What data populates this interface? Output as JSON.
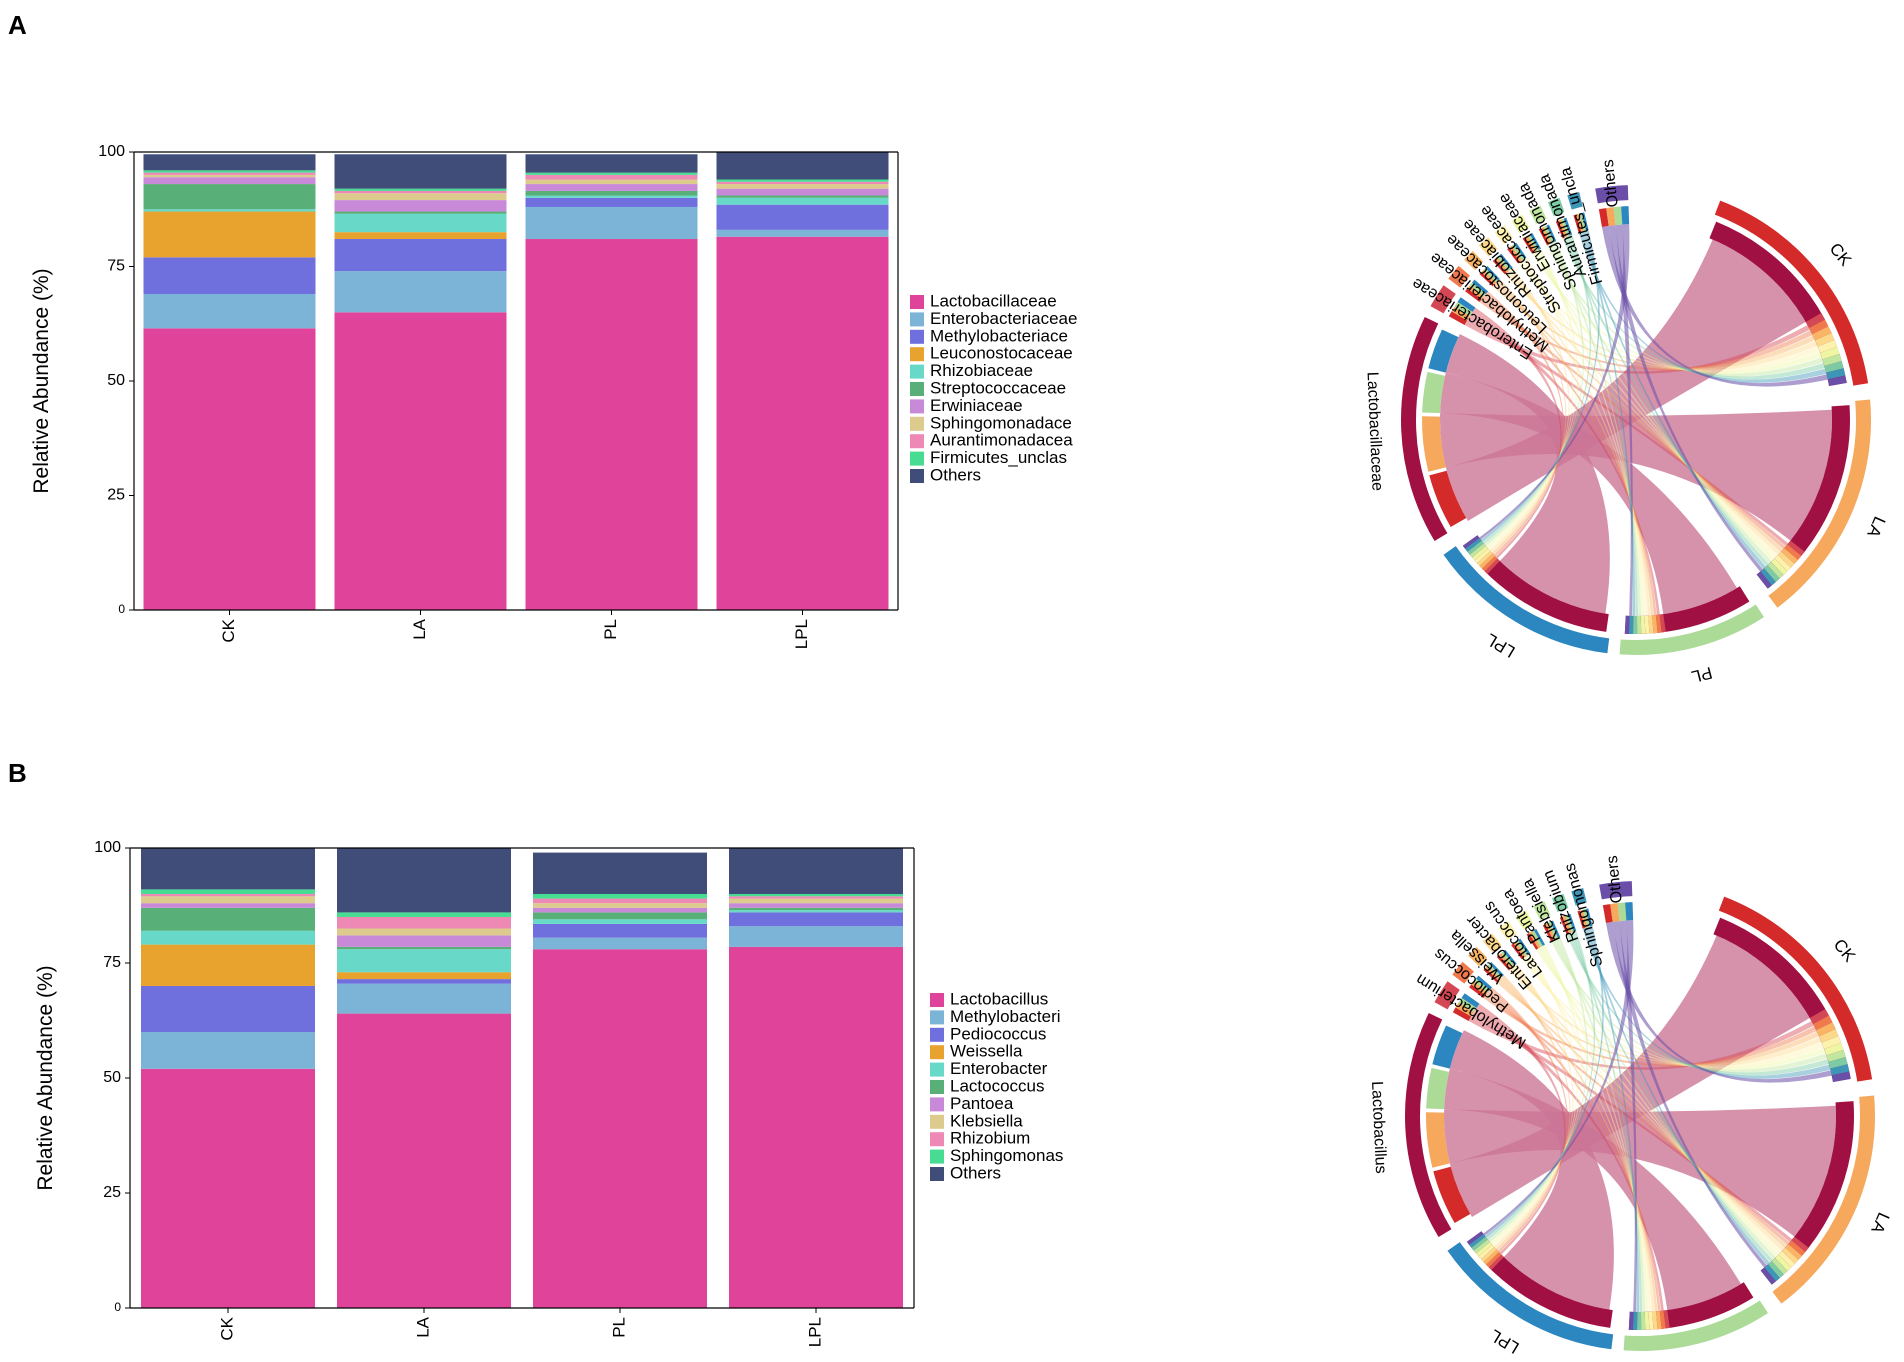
{
  "panels": [
    {
      "label": "A"
    },
    {
      "label": "B"
    }
  ],
  "chart_data": [
    {
      "type": "bar",
      "stacked": true,
      "panel": "A",
      "title": "",
      "xlabel": "",
      "ylabel": "Relative Abundance (%)",
      "ylim": [
        0,
        100
      ],
      "yticks": [
        "0",
        "25",
        "50",
        "75",
        "100"
      ],
      "categories": [
        "CK",
        "LA",
        "PL",
        "LPL"
      ],
      "series": [
        {
          "name": "Lactobacillaceae",
          "color": "#e0449a",
          "values": [
            61.5,
            65,
            81,
            81.5
          ]
        },
        {
          "name": "Enterobacteriaceae",
          "color": "#7cb4d8",
          "values": [
            7.5,
            9,
            7,
            1.5
          ]
        },
        {
          "name": "Methylobacteriaceae",
          "color": "#6f6fdd",
          "values": [
            8,
            7,
            2,
            5.5
          ]
        },
        {
          "name": "Leuconostocaceae",
          "color": "#e8a22e",
          "values": [
            10,
            1.5,
            0,
            0
          ]
        },
        {
          "name": "Rhizobiaceae",
          "color": "#68d9c8",
          "values": [
            0.5,
            4,
            0.5,
            1.5
          ]
        },
        {
          "name": "Streptococcaceae",
          "color": "#58b078",
          "values": [
            5.5,
            0.5,
            1,
            0.5
          ]
        },
        {
          "name": "Erwiniaceae",
          "color": "#c88ad8",
          "values": [
            1.5,
            2.5,
            1.5,
            1.5
          ]
        },
        {
          "name": "Sphingomonadaceae",
          "color": "#dccb8c",
          "values": [
            0.5,
            1.5,
            1,
            1
          ]
        },
        {
          "name": "Aurantimonadaceae",
          "color": "#ee88b4",
          "values": [
            0.5,
            0.5,
            1,
            0.5
          ]
        },
        {
          "name": "Firmicutes_unclassified",
          "color": "#48dc92",
          "values": [
            0.5,
            0.5,
            0.5,
            0.5
          ]
        },
        {
          "name": "Others",
          "color": "#3f4d78",
          "values": [
            3.5,
            7.5,
            4,
            6
          ]
        }
      ],
      "legend_labels": [
        "Lactobacillaceae",
        "Enterobacteriaceae",
        "Methylobacteriace",
        "Leuconostocaceae",
        "Rhizobiaceae",
        "Streptococcaceae",
        "Erwiniaceae",
        "Sphingomonadace",
        "Aurantimonadacea",
        "Firmicutes_unclas",
        "Others"
      ]
    },
    {
      "type": "chord",
      "panel": "A",
      "sample_labels": [
        "CK",
        "LA",
        "PL",
        "LPL"
      ],
      "sample_colors": [
        "#d42a2a",
        "#f6a85c",
        "#acdb98",
        "#2c86c0"
      ],
      "taxon_labels": [
        "Lactobacillaceae",
        "Enterobacteriaceae",
        "Methylobacteriaceae",
        "Leuconostocaceae",
        "Rhizobiaceae",
        "Streptococcaceae",
        "Erwiniaceae",
        "Sphingomonadaceae",
        "Aurantimonadaceae",
        "Firmicutes_unclassified",
        "Others"
      ],
      "taxon_label_text": [
        "Lactobacillaceae",
        "Enterobacteriaceae",
        "Methylobacteriaceae",
        "Leuconostocaceae",
        "Rhizobiaceae",
        "Streptococcaceae",
        "Erwiniaceae",
        "Sphingomonada",
        "Aurantimonada",
        "Firmicutes_uncla",
        "Others"
      ],
      "taxon_colors": [
        "#a01043",
        "#d44855",
        "#f07a4c",
        "#f9b466",
        "#fcd98a",
        "#fdf2ad",
        "#eef6a4",
        "#c0e6a0",
        "#7ccba4",
        "#3d96b8",
        "#6a4ea8"
      ]
    },
    {
      "type": "bar",
      "stacked": true,
      "panel": "B",
      "title": "",
      "xlabel": "",
      "ylabel": "Relative Abundance (%)",
      "ylim": [
        0,
        100
      ],
      "yticks": [
        "0",
        "25",
        "50",
        "75",
        "100"
      ],
      "categories": [
        "CK",
        "LA",
        "PL",
        "LPL"
      ],
      "series": [
        {
          "name": "Lactobacillus",
          "color": "#e0449a",
          "values": [
            52,
            64,
            78,
            78.5
          ]
        },
        {
          "name": "Methylobacterium",
          "color": "#7cb4d8",
          "values": [
            8,
            6.5,
            2.5,
            4.5
          ]
        },
        {
          "name": "Pediococcus",
          "color": "#6f6fdd",
          "values": [
            10,
            1,
            3,
            3
          ]
        },
        {
          "name": "Weissella",
          "color": "#e8a22e",
          "values": [
            9,
            1.5,
            0,
            0
          ]
        },
        {
          "name": "Enterobacter",
          "color": "#68d9c8",
          "values": [
            3,
            5,
            1,
            0.5
          ]
        },
        {
          "name": "Lactococcus",
          "color": "#58b078",
          "values": [
            5,
            0.5,
            1.5,
            0.5
          ]
        },
        {
          "name": "Pantoea",
          "color": "#c88ad8",
          "values": [
            1,
            2.5,
            1,
            1
          ]
        },
        {
          "name": "Klebsiella",
          "color": "#dccb8c",
          "values": [
            1.5,
            1.5,
            1,
            1
          ]
        },
        {
          "name": "Rhizobium",
          "color": "#ee88b4",
          "values": [
            0.5,
            2.5,
            1,
            0.5
          ]
        },
        {
          "name": "Sphingomonas",
          "color": "#48dc92",
          "values": [
            1,
            1,
            1,
            0.5
          ]
        },
        {
          "name": "Others",
          "color": "#3f4d78",
          "values": [
            9,
            14,
            9,
            10
          ]
        }
      ],
      "legend_labels": [
        "Lactobacillus",
        "Methylobacteri",
        "Pediococcus",
        "Weissella",
        "Enterobacter",
        "Lactococcus",
        "Pantoea",
        "Klebsiella",
        "Rhizobium",
        "Sphingomonas",
        "Others"
      ]
    },
    {
      "type": "chord",
      "panel": "B",
      "sample_labels": [
        "CK",
        "LA",
        "PL",
        "LPL"
      ],
      "sample_colors": [
        "#d42a2a",
        "#f6a85c",
        "#acdb98",
        "#2c86c0"
      ],
      "taxon_labels": [
        "Lactobacillus",
        "Methylobacterium",
        "Pediococcus",
        "Weissella",
        "Enterobacter",
        "Lactococcus",
        "Pantoea",
        "Klebsiella",
        "Rhizobium",
        "Sphingomonas",
        "Others"
      ],
      "taxon_label_text": [
        "Lactobacillus",
        "Methylobacterium",
        "Pediococcus",
        "Weissella",
        "Enterobacter",
        "Lactococcus",
        "Pantoea",
        "Klebsiella",
        "Rhizobium",
        "Sphingomonas",
        "Others"
      ],
      "taxon_colors": [
        "#a01043",
        "#d44855",
        "#f07a4c",
        "#f9b466",
        "#fcd98a",
        "#fdf2ad",
        "#eef6a4",
        "#c0e6a0",
        "#7ccba4",
        "#3d96b8",
        "#6a4ea8"
      ]
    }
  ]
}
